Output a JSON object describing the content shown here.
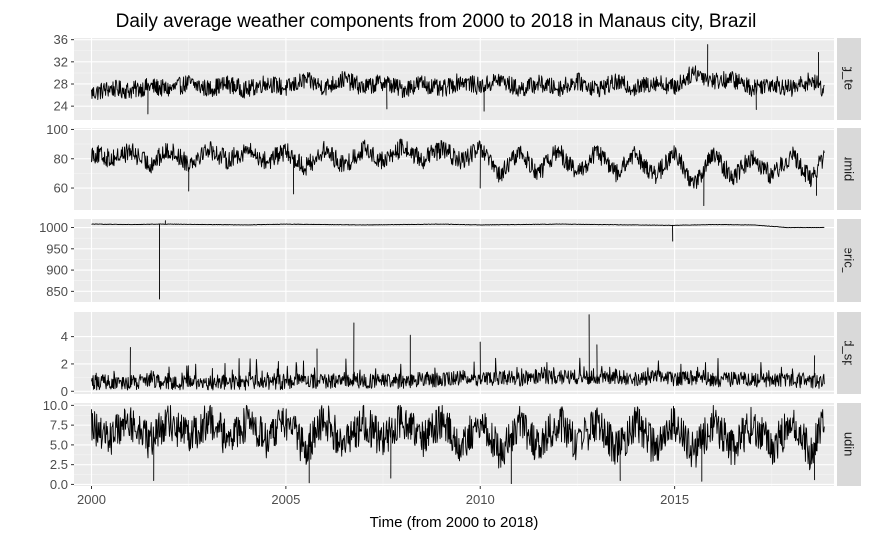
{
  "chart_data": {
    "type": "line",
    "title": "Daily average weather components from 2000 to 2018 in Manaus city, Brazil",
    "xlabel": "Time (from 2000 to 2018)",
    "xlim": [
      1999.55,
      2019.1
    ],
    "x_ticks": [
      2000,
      2005,
      2010,
      2015
    ],
    "x_tick_labels": [
      "2000",
      "2005",
      "2010",
      "2015"
    ],
    "grid": true,
    "legend": "none",
    "data_range": [
      2000.0,
      2018.85
    ],
    "panels": [
      {
        "name": "Avg_temp",
        "strip_label": "Avg_temp",
        "ylim": [
          21.5,
          36.3
        ],
        "y_ticks": [
          24,
          28,
          32,
          36
        ],
        "y_tick_labels": [
          "24",
          "28",
          "32",
          "36"
        ],
        "series": {
          "x": [
            2000.0,
            2000.5,
            2001.0,
            2001.5,
            2002.0,
            2002.5,
            2003.0,
            2003.5,
            2004.0,
            2004.5,
            2005.0,
            2005.5,
            2006.0,
            2006.5,
            2007.0,
            2007.5,
            2008.0,
            2008.5,
            2009.0,
            2009.5,
            2010.0,
            2010.5,
            2011.0,
            2011.5,
            2012.0,
            2012.5,
            2013.0,
            2013.5,
            2014.0,
            2014.5,
            2015.0,
            2015.5,
            2016.0,
            2016.5,
            2017.0,
            2017.5,
            2018.0,
            2018.5,
            2018.85
          ],
          "y": [
            26.3,
            27.2,
            26.8,
            27.6,
            27.0,
            28.2,
            27.1,
            28.0,
            26.9,
            28.3,
            27.2,
            28.7,
            27.4,
            28.9,
            27.3,
            28.4,
            27.0,
            28.2,
            26.9,
            28.6,
            27.5,
            28.8,
            27.0,
            28.1,
            27.2,
            28.5,
            27.1,
            28.3,
            27.2,
            28.4,
            27.4,
            30.2,
            28.6,
            28.8,
            27.3,
            28.2,
            27.1,
            28.7,
            27.0
          ]
        },
        "extremes": [
          [
            2001.45,
            22.6
          ],
          [
            2007.6,
            23.5
          ],
          [
            2010.1,
            23.1
          ],
          [
            2015.85,
            35.1
          ],
          [
            2017.1,
            23.4
          ],
          [
            2018.7,
            33.7
          ]
        ]
      },
      {
        "name": "Humidity",
        "strip_label": "Humidity",
        "ylim": [
          45,
          101
        ],
        "y_ticks": [
          60,
          80,
          100
        ],
        "y_tick_labels": [
          "60",
          "80",
          "100"
        ],
        "series": {
          "x": [
            2000.0,
            2000.5,
            2001.0,
            2001.5,
            2002.0,
            2002.5,
            2003.0,
            2003.5,
            2004.0,
            2004.5,
            2005.0,
            2005.5,
            2006.0,
            2006.5,
            2007.0,
            2007.5,
            2008.0,
            2008.5,
            2009.0,
            2009.5,
            2010.0,
            2010.5,
            2011.0,
            2011.5,
            2012.0,
            2012.5,
            2013.0,
            2013.5,
            2014.0,
            2014.5,
            2015.0,
            2015.5,
            2016.0,
            2016.5,
            2017.0,
            2017.5,
            2018.0,
            2018.5,
            2018.85
          ],
          "y": [
            84,
            80,
            85,
            76,
            86,
            77,
            87,
            79,
            86,
            78,
            85,
            74,
            86,
            75,
            87,
            78,
            88,
            79,
            87,
            78,
            87,
            68,
            85,
            70,
            86,
            69,
            85,
            70,
            83,
            68,
            84,
            62,
            83,
            67,
            82,
            68,
            83,
            66,
            82
          ]
        },
        "extremes": [
          [
            2002.5,
            58
          ],
          [
            2005.2,
            56
          ],
          [
            2010.0,
            60
          ],
          [
            2015.75,
            48
          ],
          [
            2018.65,
            55
          ]
        ]
      },
      {
        "name": "Atmospheric_pressure",
        "strip_label": "Atmospheric_pressure",
        "ylim": [
          825,
          1020
        ],
        "y_ticks": [
          850,
          900,
          950,
          1000
        ],
        "y_tick_labels": [
          "850",
          "900",
          "950",
          "1000"
        ],
        "series": {
          "x": [
            2000.0,
            2001.0,
            2001.75,
            2002.0,
            2003.0,
            2004.0,
            2005.0,
            2006.0,
            2007.0,
            2008.0,
            2009.0,
            2010.0,
            2011.0,
            2012.0,
            2013.0,
            2014.0,
            2015.0,
            2016.0,
            2017.0,
            2017.9,
            2018.85
          ],
          "y": [
            1008,
            1007,
            1008,
            1008,
            1007,
            1006,
            1008,
            1007,
            1006,
            1007,
            1008,
            1006,
            1007,
            1008,
            1007,
            1006,
            1005,
            1007,
            1006,
            1000,
            1000
          ]
        },
        "extremes": [
          [
            2001.75,
            832
          ],
          [
            2001.9,
            1016
          ],
          [
            2014.95,
            968
          ]
        ]
      },
      {
        "name": "Wind_speed",
        "strip_label": "Wind_speed",
        "ylim": [
          -0.2,
          5.8
        ],
        "y_ticks": [
          0,
          2,
          4
        ],
        "y_tick_labels": [
          "0",
          "2",
          "4"
        ],
        "series": {
          "x": [
            2000.0,
            2000.5,
            2001.0,
            2001.5,
            2002.0,
            2002.5,
            2003.0,
            2003.5,
            2004.0,
            2004.5,
            2005.0,
            2005.5,
            2006.0,
            2006.5,
            2007.0,
            2007.5,
            2008.0,
            2008.5,
            2009.0,
            2009.5,
            2010.0,
            2010.5,
            2011.0,
            2011.5,
            2012.0,
            2012.5,
            2013.0,
            2013.5,
            2014.0,
            2014.5,
            2015.0,
            2015.5,
            2016.0,
            2016.5,
            2017.0,
            2017.5,
            2018.0,
            2018.5,
            2018.85
          ],
          "y": [
            0.6,
            0.7,
            0.6,
            0.8,
            0.6,
            0.7,
            0.6,
            0.7,
            0.6,
            0.7,
            0.6,
            0.8,
            0.7,
            0.9,
            0.7,
            0.8,
            0.7,
            0.9,
            0.8,
            1.0,
            0.9,
            1.0,
            0.9,
            1.1,
            1.0,
            1.1,
            1.0,
            1.1,
            0.9,
            1.0,
            0.9,
            1.0,
            0.8,
            0.9,
            0.8,
            0.9,
            0.8,
            0.8,
            0.7
          ]
        },
        "extremes": [
          [
            2001.0,
            3.2
          ],
          [
            2005.8,
            3.1
          ],
          [
            2006.75,
            5.0
          ],
          [
            2008.2,
            4.1
          ],
          [
            2010.0,
            3.6
          ],
          [
            2012.8,
            5.6
          ],
          [
            2013.0,
            3.4
          ],
          [
            2018.6,
            2.6
          ]
        ]
      },
      {
        "name": "Cloudiness",
        "strip_label": "Cloudiness",
        "ylim": [
          -0.2,
          10.3
        ],
        "y_ticks": [
          0.0,
          2.5,
          5.0,
          7.5,
          10.0
        ],
        "y_tick_labels": [
          "0.0",
          "2.5",
          "5.0",
          "7.5",
          "10.0"
        ],
        "series": {
          "x": [
            2000.0,
            2000.5,
            2001.0,
            2001.5,
            2002.0,
            2002.5,
            2003.0,
            2003.5,
            2004.0,
            2004.5,
            2005.0,
            2005.5,
            2006.0,
            2006.5,
            2007.0,
            2007.5,
            2008.0,
            2008.5,
            2009.0,
            2009.5,
            2010.0,
            2010.5,
            2011.0,
            2011.5,
            2012.0,
            2012.5,
            2013.0,
            2013.5,
            2014.0,
            2014.5,
            2015.0,
            2015.5,
            2016.0,
            2016.5,
            2017.0,
            2017.5,
            2018.0,
            2018.5,
            2018.85
          ],
          "y": [
            7.5,
            6.0,
            8.0,
            5.5,
            8.0,
            6.0,
            8.2,
            5.8,
            8.0,
            5.5,
            8.0,
            4.5,
            8.2,
            5.0,
            8.0,
            5.5,
            8.3,
            5.5,
            8.0,
            5.0,
            8.0,
            4.0,
            8.0,
            4.5,
            8.2,
            5.0,
            8.0,
            4.5,
            7.8,
            4.5,
            7.9,
            4.0,
            8.0,
            4.5,
            7.8,
            4.5,
            7.9,
            4.0,
            8.0
          ]
        },
        "extremes": [
          [
            2001.6,
            0.5
          ],
          [
            2005.6,
            0.2
          ],
          [
            2007.7,
            0.8
          ],
          [
            2010.8,
            0.1
          ],
          [
            2013.6,
            0.5
          ],
          [
            2015.7,
            0.4
          ],
          [
            2018.6,
            0.6
          ]
        ]
      }
    ]
  },
  "style": {
    "panel_background": "#ebebeb",
    "strip_background": "#d9d9d9",
    "major_grid": "#ffffff",
    "minor_grid": "#f5f5f5",
    "line_color": "#000000",
    "tick_color": "#333333",
    "tick_label_color": "#4d4d4d"
  }
}
